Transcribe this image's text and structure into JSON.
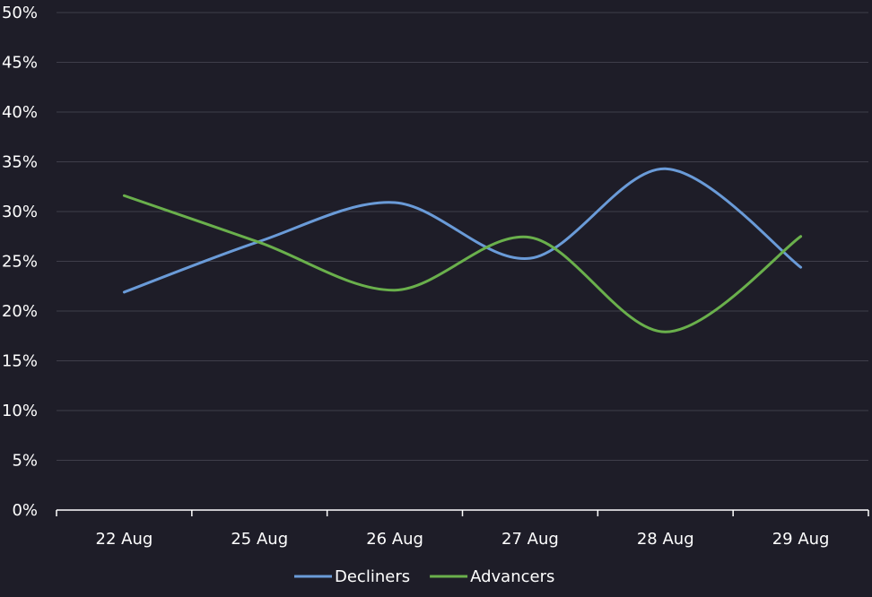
{
  "chart_data": {
    "type": "line",
    "title": "",
    "xlabel": "",
    "ylabel": "",
    "categories": [
      "22 Aug",
      "25 Aug",
      "26 Aug",
      "27 Aug",
      "28 Aug",
      "29 Aug"
    ],
    "ylim": [
      0,
      50
    ],
    "yticks": [
      0,
      5,
      10,
      15,
      20,
      25,
      30,
      35,
      40,
      45,
      50
    ],
    "ytick_suffix": "%",
    "grid": "horizontal",
    "smooth": true,
    "legend_position": "bottom-center",
    "series": [
      {
        "name": "Decliners",
        "color": "#6a9bd8",
        "values": [
          21.9,
          27.0,
          30.9,
          25.3,
          34.3,
          24.4
        ]
      },
      {
        "name": "Advancers",
        "color": "#6ab04c",
        "values": [
          31.6,
          26.9,
          22.1,
          27.4,
          17.9,
          27.5
        ]
      }
    ],
    "colors": {
      "background": "#1e1d28",
      "grid": "#3f3e4a",
      "axis": "#ffffff",
      "text": "#ffffff"
    }
  }
}
